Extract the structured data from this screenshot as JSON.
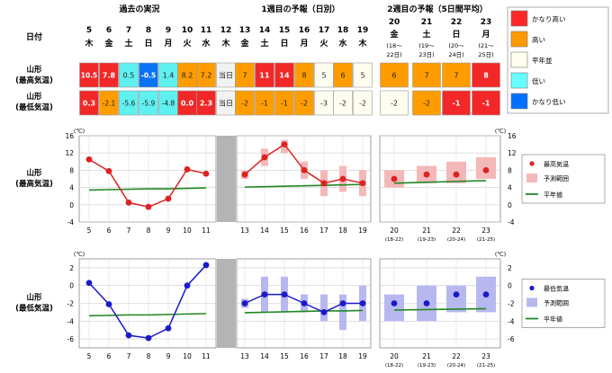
{
  "headers": {
    "past": "過去の実況",
    "week1": "1週目の予報（日別）",
    "week2": "2週目の予報（5日間平均）",
    "date_label": "日付"
  },
  "row_labels": {
    "max_a": "山形",
    "max_b": "(最高気温)",
    "min_a": "山形",
    "min_b": "(最低気温)",
    "chart_max_a": "山形",
    "chart_max_b": "(最高気温)",
    "chart_min_a": "山形",
    "chart_min_b": "(最低気温)"
  },
  "days": [
    {
      "day": "5",
      "wd": "木"
    },
    {
      "day": "6",
      "wd": "金"
    },
    {
      "day": "7",
      "wd": "土"
    },
    {
      "day": "8",
      "wd": "日"
    },
    {
      "day": "9",
      "wd": "月"
    },
    {
      "day": "10",
      "wd": "火"
    },
    {
      "day": "11",
      "wd": "水"
    },
    {
      "day": "12",
      "wd": "木"
    },
    {
      "day": "13",
      "wd": "金"
    },
    {
      "day": "14",
      "wd": "土"
    },
    {
      "day": "15",
      "wd": "日"
    },
    {
      "day": "16",
      "wd": "月"
    },
    {
      "day": "17",
      "wd": "火"
    },
    {
      "day": "18",
      "wd": "水"
    },
    {
      "day": "19",
      "wd": "木"
    }
  ],
  "week2_days": [
    {
      "day": "20",
      "wd": "金",
      "range": "(18〜",
      "range2": "22日)"
    },
    {
      "day": "21",
      "wd": "土",
      "range": "(19〜",
      "range2": "23日)"
    },
    {
      "day": "22",
      "wd": "日",
      "range": "(20〜",
      "range2": "24日)"
    },
    {
      "day": "23",
      "wd": "月",
      "range": "(21〜",
      "range2": "25日)"
    }
  ],
  "max_row": [
    "10.5",
    "7.8",
    "0.5",
    "-0.5",
    "1.4",
    "8.2",
    "7.2",
    "当日",
    "7",
    "11",
    "14",
    "8",
    "5",
    "6",
    "5"
  ],
  "max_row_class": [
    "vhigh",
    "vhigh",
    "low",
    "vlow",
    "low",
    "high",
    "high",
    "today",
    "high",
    "vhigh",
    "vhigh",
    "high",
    "normal",
    "high",
    "normal"
  ],
  "min_row": [
    "0.3",
    "-2.1",
    "-5.6",
    "-5.9",
    "-4.8",
    "0.0",
    "2.3",
    "当日",
    "-2",
    "-1",
    "-1",
    "-2",
    "-3",
    "-2",
    "-2"
  ],
  "min_row_class": [
    "vhigh",
    "high",
    "low",
    "low",
    "low",
    "vhigh",
    "vhigh",
    "today",
    "high",
    "high",
    "high",
    "high",
    "normal",
    "normal",
    "normal"
  ],
  "w2_max": [
    "6",
    "7",
    "7",
    "8"
  ],
  "w2_max_class": [
    "high",
    "high",
    "high",
    "vhigh"
  ],
  "w2_min": [
    "-2",
    "-2",
    "-1",
    "-1"
  ],
  "w2_min_class": [
    "normal",
    "high",
    "vhigh",
    "vhigh"
  ],
  "legend": [
    {
      "label": "かなり高い",
      "color": "#ff2828"
    },
    {
      "label": "高い",
      "color": "#ff9900"
    },
    {
      "label": "平年並",
      "color": "#ffffee"
    },
    {
      "label": "低い",
      "color": "#66ffff"
    },
    {
      "label": "かなり低い",
      "color": "#0070ff"
    }
  ],
  "colors": {
    "vhigh": "#f22828",
    "high": "#ff9c00",
    "normal": "#fffdf0",
    "low": "#5ff0f0",
    "vlow": "#0a72f5",
    "today": "#f2f2f2",
    "max_line": "#dd2222",
    "max_range": "#f4b8b8",
    "min_line": "#1a1acc",
    "min_range": "#b8b8f0",
    "normal_line": "#228822"
  },
  "chart_max_legend": {
    "point": "最高気温",
    "range": "予測範囲",
    "normal": "平年値"
  },
  "chart_min_legend": {
    "point": "最低気温",
    "range": "予測範囲",
    "normal": "平年値"
  },
  "unit": "(℃)",
  "chart_data": [
    {
      "type": "line",
      "title": "",
      "ylabel": "(℃)",
      "ylim": [
        -4,
        16
      ],
      "yticks": [
        -4,
        0,
        4,
        8,
        12,
        16
      ],
      "x": [
        "5",
        "6",
        "7",
        "8",
        "9",
        "10",
        "11",
        "12",
        "13",
        "14",
        "15",
        "16",
        "17",
        "18",
        "19"
      ],
      "series": [
        {
          "name": "最高気温",
          "values": [
            10.5,
            7.8,
            0.5,
            -0.5,
            1.4,
            8.2,
            7.2,
            null,
            7,
            11,
            14,
            8,
            5,
            6,
            5
          ]
        },
        {
          "name": "平年値",
          "values": [
            3.4,
            3.5,
            3.6,
            3.7,
            3.7,
            3.8,
            3.9,
            null,
            4.1,
            4.2,
            4.3,
            4.4,
            4.5,
            4.6,
            4.7
          ]
        }
      ],
      "range": [
        null,
        null,
        null,
        null,
        null,
        null,
        null,
        null,
        [
          6,
          8
        ],
        [
          9,
          13
        ],
        [
          12,
          15
        ],
        [
          6,
          10
        ],
        [
          2,
          8
        ],
        [
          3,
          9
        ],
        [
          2,
          8
        ]
      ],
      "week2": {
        "x": [
          "20",
          "21",
          "22",
          "23"
        ],
        "x_sub": [
          "(18-22)",
          "(19-23)",
          "(20-24)",
          "(21-25)"
        ],
        "values": [
          6,
          7,
          7,
          8
        ],
        "range": [
          [
            4,
            8
          ],
          [
            5,
            9
          ],
          [
            5,
            10
          ],
          [
            6,
            11
          ]
        ],
        "normal": [
          5.0,
          5.2,
          5.4,
          5.6
        ]
      }
    },
    {
      "type": "line",
      "title": "",
      "ylabel": "(℃)",
      "ylim": [
        -7,
        3
      ],
      "yticks": [
        -6,
        -4,
        -2,
        0,
        2
      ],
      "x": [
        "5",
        "6",
        "7",
        "8",
        "9",
        "10",
        "11",
        "12",
        "13",
        "14",
        "15",
        "16",
        "17",
        "18",
        "19"
      ],
      "series": [
        {
          "name": "最低気温",
          "values": [
            0.3,
            -2.1,
            -5.6,
            -5.9,
            -4.8,
            0.0,
            2.3,
            null,
            -2,
            -1,
            -1,
            -2,
            -3,
            -2,
            -2
          ]
        },
        {
          "name": "平年値",
          "values": [
            -3.4,
            -3.35,
            -3.3,
            -3.3,
            -3.25,
            -3.2,
            -3.15,
            null,
            -3.05,
            -3.0,
            -2.95,
            -2.9,
            -2.85,
            -2.85,
            -2.8
          ]
        }
      ],
      "range": [
        null,
        null,
        null,
        null,
        null,
        null,
        null,
        null,
        [
          -2.5,
          -1.5
        ],
        [
          -3,
          1
        ],
        [
          -3,
          1
        ],
        [
          -3,
          -1
        ],
        [
          -4,
          -1
        ],
        [
          -5,
          -1
        ],
        [
          -4,
          0
        ]
      ],
      "week2": {
        "x": [
          "20",
          "21",
          "22",
          "23"
        ],
        "x_sub": [
          "(18-22)",
          "(19-23)",
          "(20-24)",
          "(21-25)"
        ],
        "values": [
          -2,
          -2,
          -1,
          -1
        ],
        "range": [
          [
            -4,
            -1
          ],
          [
            -4,
            0
          ],
          [
            -3,
            0
          ],
          [
            -3,
            1
          ]
        ],
        "normal": [
          -2.75,
          -2.7,
          -2.65,
          -2.6
        ]
      }
    }
  ]
}
